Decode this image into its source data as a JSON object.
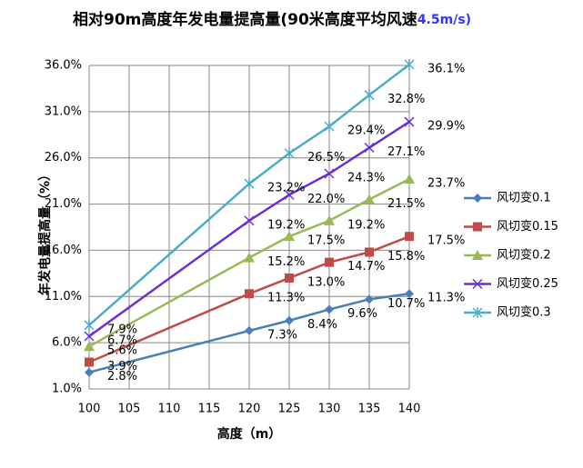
{
  "chart_data": {
    "type": "line",
    "title": "相对90m高度年发电量提高量(90米高度平均风速",
    "title_suffix": "4.5m/s)",
    "x_label": "高度（m）",
    "y_label": "年发电量提高量（%）",
    "x": [
      100,
      120,
      125,
      130,
      135,
      140
    ],
    "xlim": [
      100,
      140
    ],
    "xticks": [
      100,
      105,
      110,
      115,
      120,
      125,
      130,
      135,
      140
    ],
    "ylim": [
      1,
      36
    ],
    "yticks": [
      {
        "value": 1,
        "label": "1.0%"
      },
      {
        "value": 6,
        "label": "6.0%"
      },
      {
        "value": 11,
        "label": "11.0%"
      },
      {
        "value": 16,
        "label": "16.0%"
      },
      {
        "value": 21,
        "label": "21.0%"
      },
      {
        "value": 26,
        "label": "26.0%"
      },
      {
        "value": 31,
        "label": "31.0%"
      },
      {
        "value": 36,
        "label": "36.0%"
      }
    ],
    "grid": true,
    "legend": "right",
    "series": [
      {
        "name": "风切变0.1",
        "color": "#4a7ebb",
        "marker": "diamond",
        "values": [
          2.8,
          7.3,
          8.4,
          9.6,
          10.7,
          11.3
        ],
        "value_labels": [
          "2.8%",
          "7.3%",
          "8.4%",
          "9.6%",
          "10.7%",
          "11.3%"
        ]
      },
      {
        "name": "风切变0.15",
        "color": "#be4b48",
        "marker": "square",
        "values": [
          3.9,
          11.3,
          13.0,
          14.7,
          15.8,
          17.5
        ],
        "value_labels": [
          "3.9%",
          "11.3%",
          "13.0%",
          "14.7%",
          "15.8%",
          "17.5%"
        ]
      },
      {
        "name": "风切变0.2",
        "color": "#98b954",
        "marker": "triangle",
        "values": [
          5.6,
          15.2,
          17.5,
          19.2,
          21.5,
          23.7
        ],
        "value_labels": [
          "5.6%",
          "15.2%",
          "17.5%",
          "19.2%",
          "21.5%",
          "23.7%"
        ]
      },
      {
        "name": "风切变0.25",
        "color": "#6a2fd6",
        "marker": "x",
        "values": [
          6.7,
          19.2,
          22.0,
          24.3,
          27.1,
          29.9
        ],
        "value_labels": [
          "6.7%",
          "19.2%",
          "22.0%",
          "24.3%",
          "27.1%",
          "29.9%"
        ]
      },
      {
        "name": "风切变0.3",
        "color": "#4bacc6",
        "marker": "star",
        "values": [
          7.9,
          23.2,
          26.5,
          29.4,
          32.8,
          36.1
        ],
        "value_labels": [
          "7.9%",
          "23.2%",
          "26.5%",
          "29.4%",
          "32.8%",
          "36.1%"
        ]
      }
    ]
  }
}
